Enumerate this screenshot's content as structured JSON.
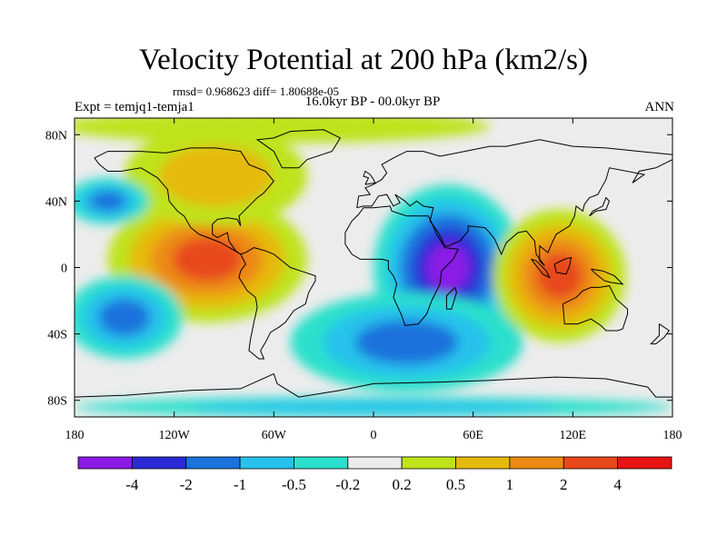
{
  "title": "Velocity Potential at 200 hPa (km2/s)",
  "stats": "rmsd= 0.968623 diff= 1.80688e-05",
  "expt": "Expt = temjq1-temja1",
  "period": "16.0kyr BP - 00.0kyr BP",
  "season": "ANN",
  "map": {
    "projection": "equirectangular",
    "lon_range": [
      -180,
      180
    ],
    "lat_range": [
      -90,
      90
    ],
    "lon_ticks": [
      {
        "value": -180,
        "label": "180"
      },
      {
        "value": -120,
        "label": "120W"
      },
      {
        "value": -60,
        "label": "60W"
      },
      {
        "value": 0,
        "label": "0"
      },
      {
        "value": 60,
        "label": "60E"
      },
      {
        "value": 120,
        "label": "120E"
      },
      {
        "value": 180,
        "label": "180"
      }
    ],
    "lat_ticks": [
      {
        "value": 80,
        "label": "80N"
      },
      {
        "value": 40,
        "label": "40N"
      },
      {
        "value": 0,
        "label": "0"
      },
      {
        "value": -40,
        "label": "40S"
      },
      {
        "value": -80,
        "label": "80S"
      }
    ],
    "fields": [
      {
        "name": "pacific-positive-core",
        "lon": -100,
        "lat": 5,
        "rlon": 60,
        "rlat": 38,
        "level": 2
      },
      {
        "name": "north-atlantic-positive",
        "lon": -95,
        "lat": 55,
        "rlon": 55,
        "rlat": 30,
        "level": 0.5
      },
      {
        "name": "arctic-positive",
        "lon": -60,
        "lat": 85,
        "rlon": 130,
        "rlat": 10,
        "level": 0.2
      },
      {
        "name": "indian-negative-core",
        "lon": 45,
        "lat": 0,
        "rlon": 45,
        "rlat": 50,
        "level": -4
      },
      {
        "name": "southern-negative",
        "lon": 20,
        "lat": -45,
        "rlon": 70,
        "rlat": 30,
        "level": -1
      },
      {
        "name": "northwest-pacific-negative",
        "lon": -160,
        "lat": 40,
        "rlon": 25,
        "rlat": 14,
        "level": -1
      },
      {
        "name": "south-pacific-negative",
        "lon": -150,
        "lat": -30,
        "rlon": 35,
        "rlat": 25,
        "level": -1
      },
      {
        "name": "maritime-positive-core",
        "lon": 112,
        "lat": -5,
        "rlon": 40,
        "rlat": 40,
        "level": 2
      },
      {
        "name": "antarctic-negative",
        "lon": 0,
        "lat": -84,
        "rlon": 180,
        "rlat": 6,
        "level": -0.5
      }
    ]
  },
  "colorbar": {
    "colors": [
      "#8b1ae6",
      "#2a2ad6",
      "#1a72dc",
      "#27c2ec",
      "#2ae0cc",
      "#ececec",
      "#bfe31a",
      "#e6b90d",
      "#ec8a12",
      "#e8481a",
      "#e81414"
    ],
    "labels": [
      "-4",
      "-2",
      "-1",
      "-0.5",
      "-0.2",
      "0.2",
      "0.5",
      "1",
      "2",
      "4"
    ]
  }
}
